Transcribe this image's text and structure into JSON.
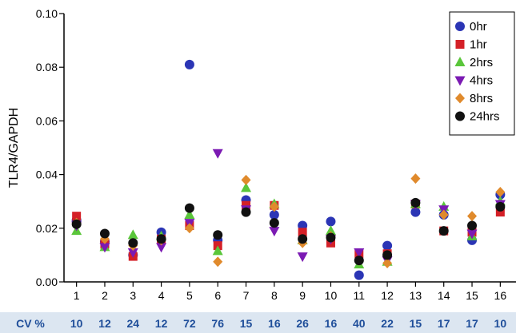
{
  "chart_data": {
    "type": "scatter",
    "title": "",
    "xlabel": "",
    "ylabel": "TLR4/GAPDH",
    "ylim": [
      0,
      0.1
    ],
    "yticks": [
      "0.00",
      "0.02",
      "0.04",
      "0.06",
      "0.08",
      "0.10"
    ],
    "categories": [
      "1",
      "2",
      "3",
      "4",
      "5",
      "6",
      "7",
      "8",
      "9",
      "10",
      "11",
      "12",
      "13",
      "14",
      "15",
      "16"
    ],
    "legend_position": "top-right",
    "grid": false,
    "series": [
      {
        "name": "0hr",
        "color": "#2b35b5",
        "marker": "circle",
        "values": [
          0.023,
          0.015,
          0.01,
          0.0185,
          0.081,
          0.0155,
          0.0305,
          0.025,
          0.021,
          0.0225,
          0.0025,
          0.0135,
          0.026,
          0.025,
          0.0155,
          0.0325
        ]
      },
      {
        "name": "1hr",
        "color": "#d42027",
        "marker": "square",
        "values": [
          0.0245,
          0.014,
          0.0095,
          0.016,
          0.021,
          0.0135,
          0.0285,
          0.0285,
          0.0185,
          0.0145,
          0.0105,
          0.0105,
          0.029,
          0.019,
          0.0185,
          0.026
        ]
      },
      {
        "name": "2hrs",
        "color": "#5ac63a",
        "marker": "triangle-up",
        "values": [
          0.019,
          0.013,
          0.0175,
          0.017,
          0.025,
          0.0115,
          0.035,
          0.029,
          0.0155,
          0.019,
          0.0065,
          0.0075,
          0.029,
          0.028,
          0.017,
          0.03
        ]
      },
      {
        "name": "4hrs",
        "color": "#7b1ab3",
        "marker": "triangle-down",
        "values": [
          0.021,
          0.013,
          0.011,
          0.013,
          0.022,
          0.048,
          0.027,
          0.019,
          0.0095,
          0.016,
          0.011,
          0.008,
          0.029,
          0.027,
          0.018,
          0.029
        ]
      },
      {
        "name": "8hrs",
        "color": "#e08a2c",
        "marker": "diamond",
        "values": [
          0.022,
          0.016,
          0.0135,
          0.0155,
          0.02,
          0.0075,
          0.038,
          0.028,
          0.0145,
          0.017,
          0.008,
          0.007,
          0.0385,
          0.025,
          0.0245,
          0.0335
        ]
      },
      {
        "name": "24hrs",
        "color": "#111111",
        "marker": "circle",
        "values": [
          0.0215,
          0.018,
          0.0145,
          0.016,
          0.0275,
          0.0175,
          0.026,
          0.022,
          0.016,
          0.0165,
          0.008,
          0.01,
          0.0295,
          0.019,
          0.021,
          0.028
        ]
      }
    ],
    "cv": {
      "label": "CV %",
      "values": [
        "10",
        "12",
        "24",
        "12",
        "72",
        "76",
        "15",
        "16",
        "26",
        "16",
        "40",
        "22",
        "15",
        "17",
        "17",
        "10"
      ]
    }
  }
}
